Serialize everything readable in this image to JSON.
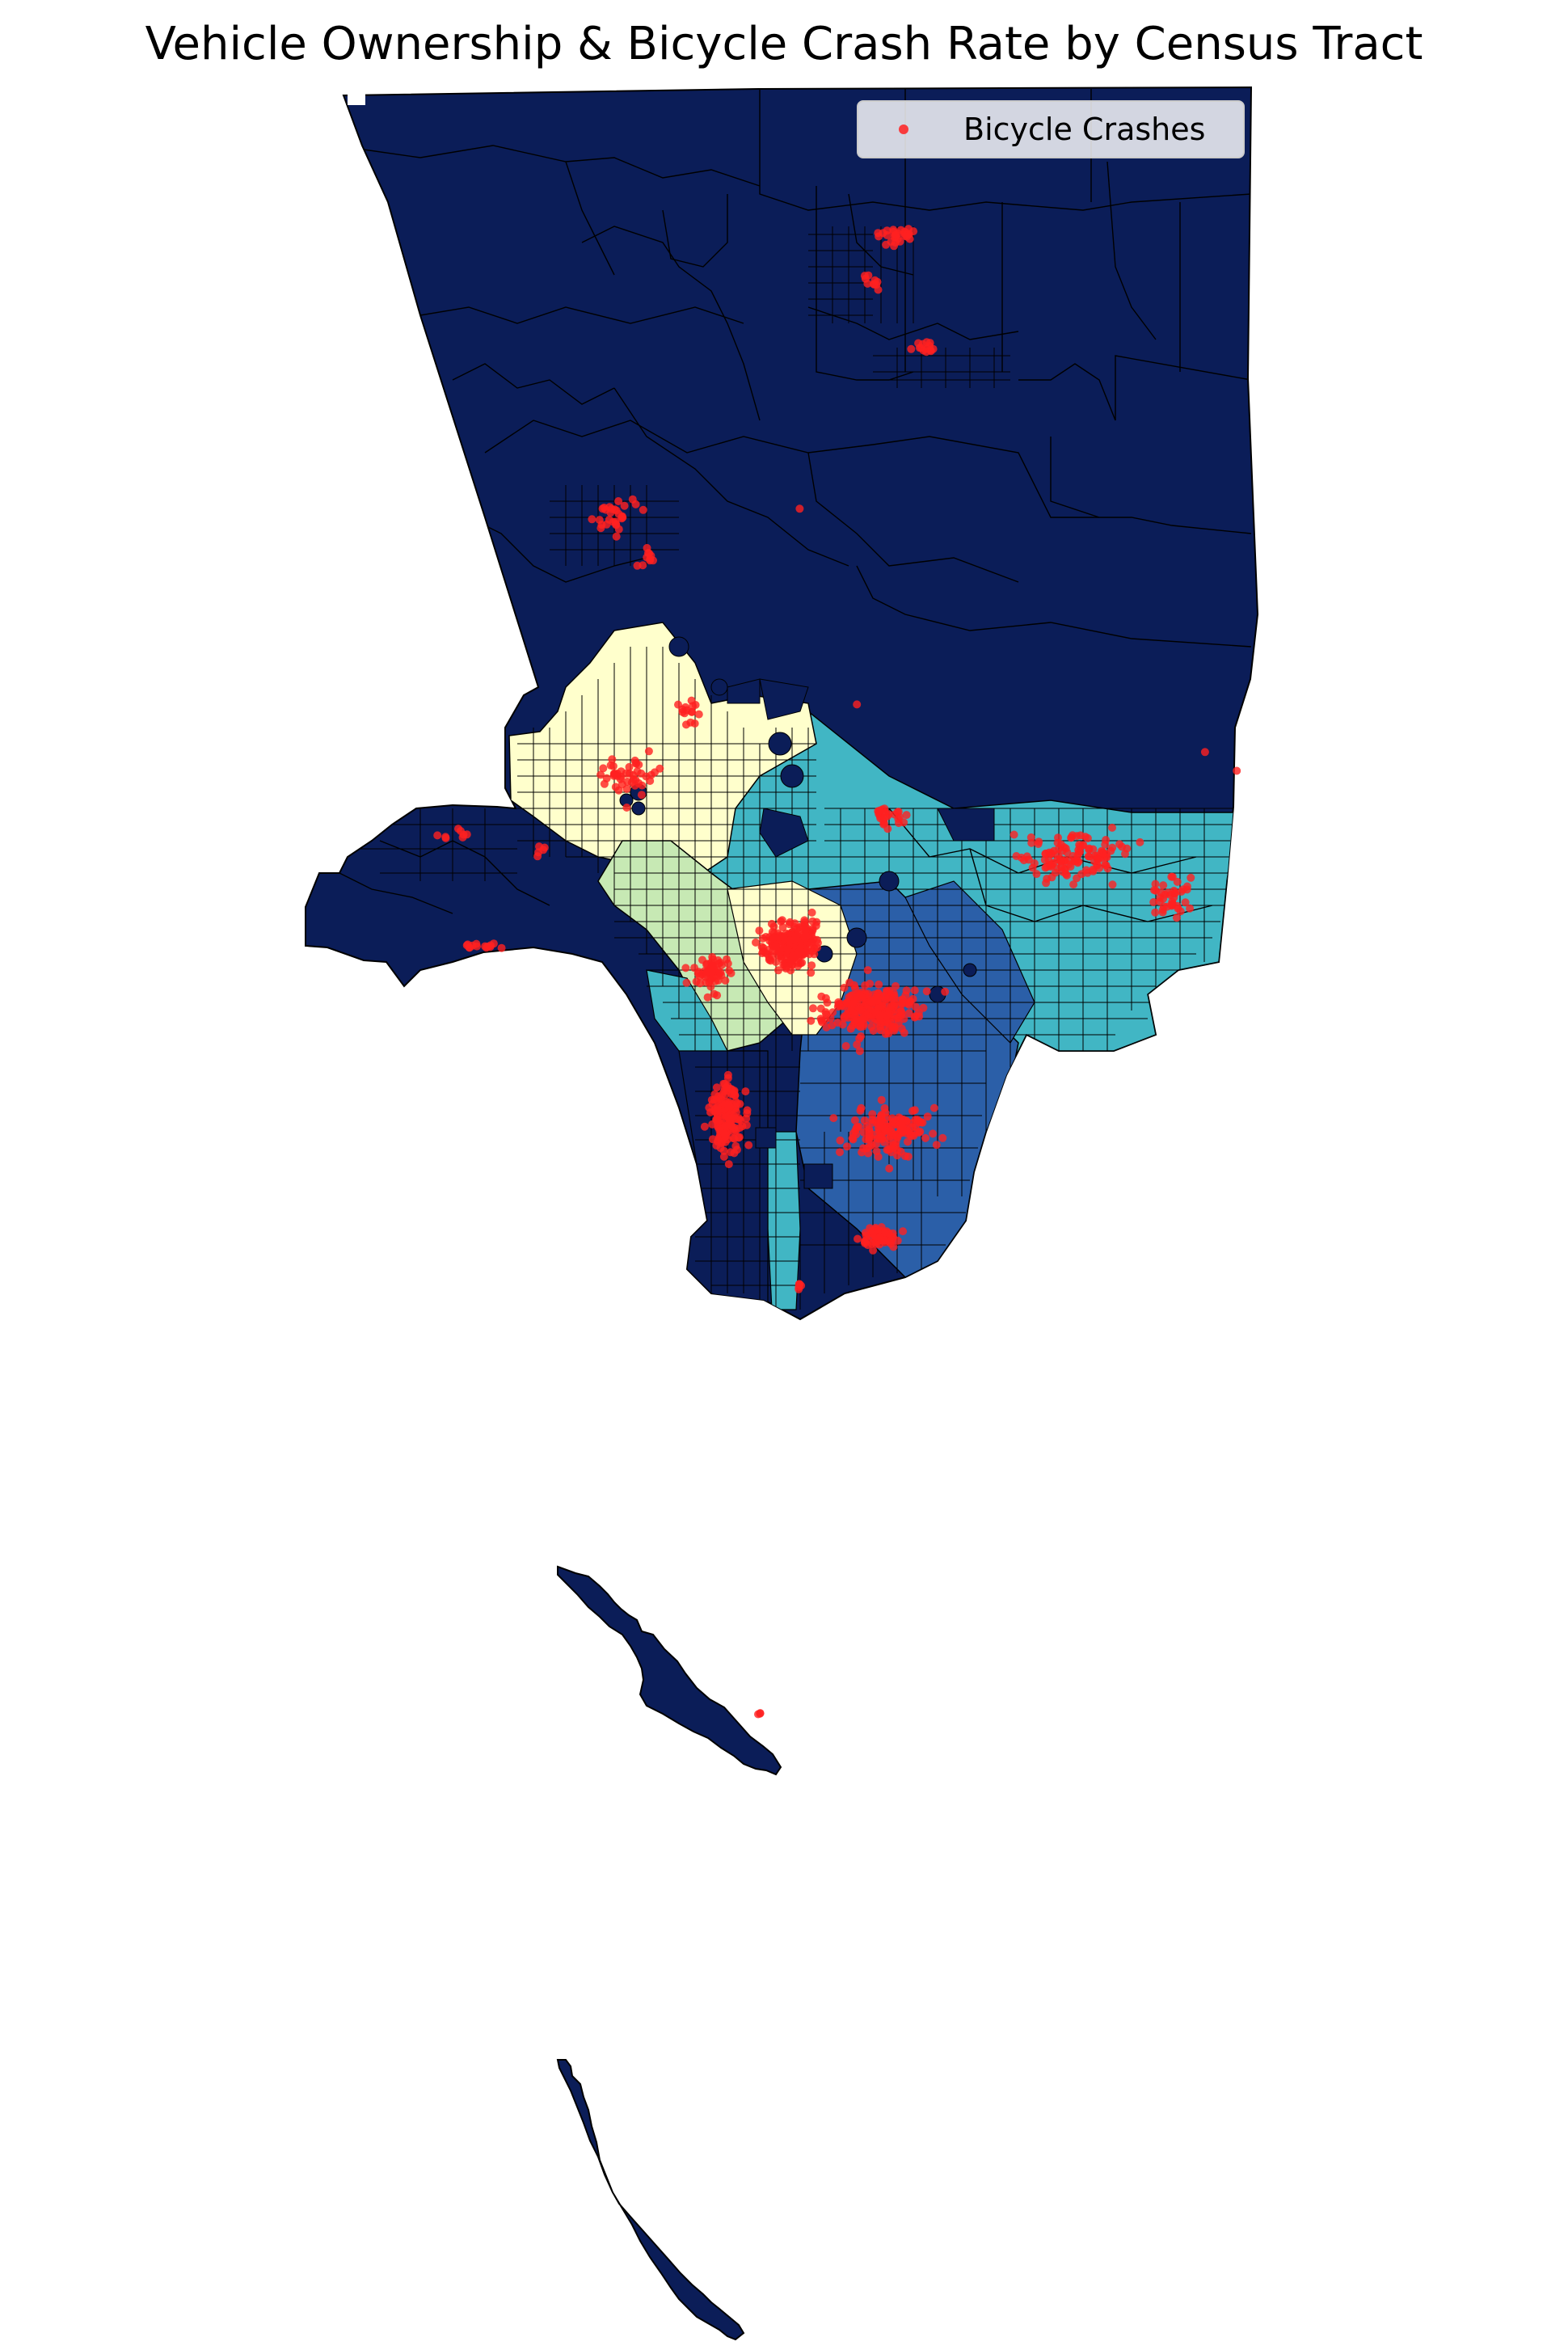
{
  "title": "Vehicle Ownership & Bicycle Crash Rate by Census Tract",
  "legend": {
    "label": "Bicycle Crashes",
    "marker_color": "#ff2020"
  },
  "colors": {
    "highest_ownership": "#0b1d58",
    "upper_mid_ownership": "#2b5fa8",
    "mid_ownership": "#41b6c4",
    "lower_mid_ownership": "#c7e9b4",
    "lowest_ownership": "#ffffcc",
    "tract_border": "#000000",
    "crash_point": "#ff2020"
  },
  "chart_data": {
    "type": "choropleth",
    "title": "Vehicle Ownership & Bicycle Crash Rate by Census Tract",
    "colormap": "YlGnBu",
    "point_layer": "Bicycle Crashes",
    "legend_position": "upper right",
    "axes_visible": false
  }
}
